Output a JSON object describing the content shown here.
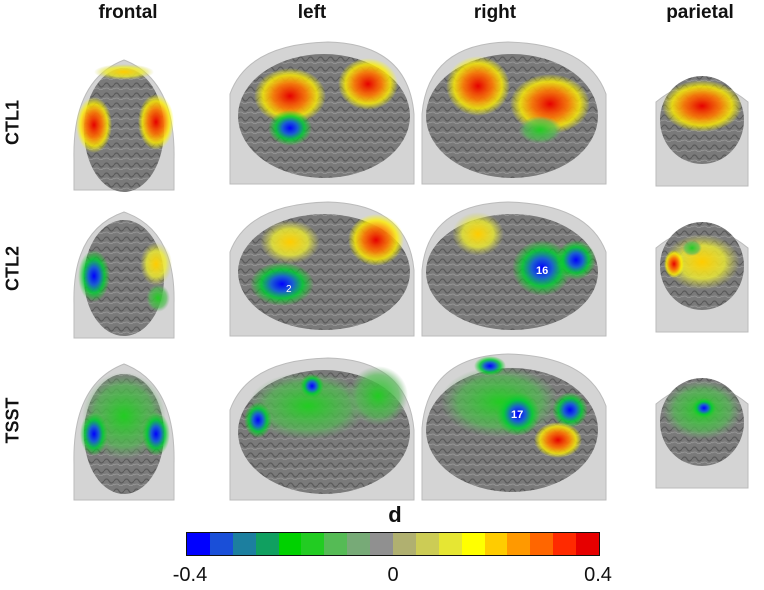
{
  "columns": [
    "frontal",
    "left",
    "right",
    "parietal"
  ],
  "rows": [
    "CTL1",
    "CTL2",
    "TSST"
  ],
  "colorbar": {
    "title": "d",
    "ticks": [
      "-0.4",
      "0",
      "0.4"
    ],
    "colors": [
      "#0000ff",
      "#1a4fd8",
      "#1c7f9f",
      "#10a060",
      "#00d200",
      "#22cc22",
      "#55bb55",
      "#77aa77",
      "#909090",
      "#b0b070",
      "#cccc55",
      "#e6e633",
      "#ffff00",
      "#ffcc00",
      "#ff9900",
      "#ff6600",
      "#ff2a00",
      "#e60000"
    ]
  },
  "channel_labels": {
    "ctl2_right": "16",
    "tsst_right": "17",
    "ctl2_left": "2"
  }
}
